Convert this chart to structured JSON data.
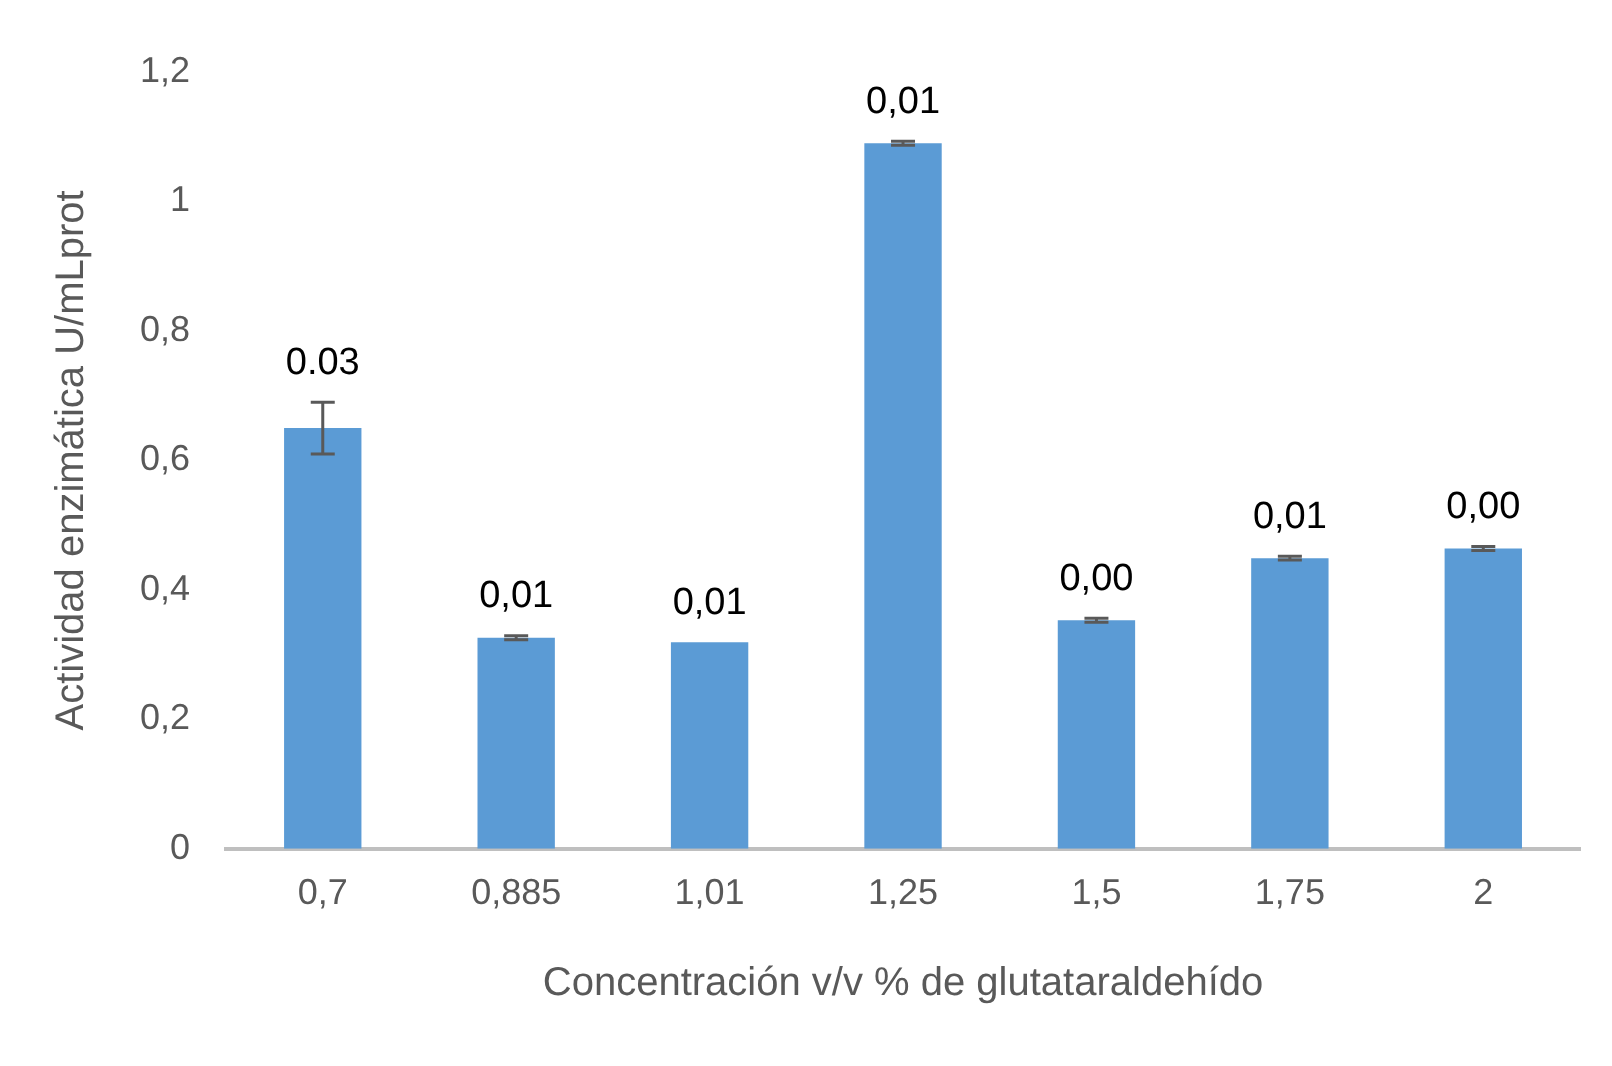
{
  "chart_data": {
    "type": "bar",
    "xlabel": "Concentración v/v % de glutataraldehído",
    "ylabel": "Actividad enzimática U/mLprot",
    "categories": [
      "0,7",
      "0,885",
      "1,01",
      "1,25",
      "1,5",
      "1,75",
      "2"
    ],
    "values": [
      0.65,
      0.326,
      0.319,
      1.09,
      0.353,
      0.449,
      0.464
    ],
    "errors": [
      0.04,
      0.003,
      null,
      0.003,
      0.003,
      0.003,
      0.003
    ],
    "annotations": [
      {
        "text": "0.03",
        "x": "0,7",
        "y": 0.69
      },
      {
        "text": "0,01",
        "x": "0,885",
        "y": 0.329
      },
      {
        "text": "0,01",
        "x": "1,01",
        "y": 0.319
      },
      {
        "text": "0,01",
        "x": "1,25",
        "y": 1.093
      },
      {
        "text": "0,00",
        "x": "1,5",
        "y": 0.356
      },
      {
        "text": "0,01",
        "x": "1,75",
        "y": 0.452
      },
      {
        "text": "0,00",
        "x": "2",
        "y": 0.467
      }
    ],
    "color": "#5b9bd5",
    "ylim": [
      0,
      1.2
    ],
    "yticks": [
      {
        "value": 0,
        "label": "0"
      },
      {
        "value": 0.2,
        "label": "0,2"
      },
      {
        "value": 0.4,
        "label": "0,4"
      },
      {
        "value": 0.6,
        "label": "0,6"
      },
      {
        "value": 0.8,
        "label": "0,8"
      },
      {
        "value": 1,
        "label": "1"
      },
      {
        "value": 1.2,
        "label": "1,2"
      }
    ],
    "grid": false,
    "legend": false
  }
}
